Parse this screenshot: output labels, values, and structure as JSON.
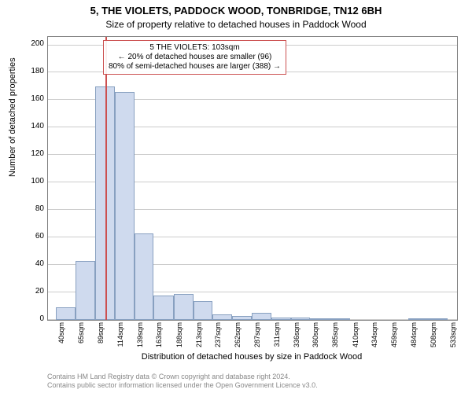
{
  "title_main": "5, THE VIOLETS, PADDOCK WOOD, TONBRIDGE, TN12 6BH",
  "title_sub": "Size of property relative to detached houses in Paddock Wood",
  "y_axis_label": "Number of detached properties",
  "x_axis_label": "Distribution of detached houses by size in Paddock Wood",
  "chart": {
    "type": "histogram",
    "ylim": [
      0,
      206
    ],
    "y_ticks": [
      0,
      20,
      40,
      60,
      80,
      100,
      120,
      140,
      160,
      180,
      200
    ],
    "x_tick_labels": [
      "40sqm",
      "65sqm",
      "89sqm",
      "114sqm",
      "139sqm",
      "163sqm",
      "188sqm",
      "213sqm",
      "237sqm",
      "262sqm",
      "287sqm",
      "311sqm",
      "336sqm",
      "360sqm",
      "385sqm",
      "410sqm",
      "434sqm",
      "459sqm",
      "484sqm",
      "508sqm",
      "533sqm"
    ],
    "x_tick_positions": [
      40,
      65,
      89,
      114,
      139,
      163,
      188,
      213,
      237,
      262,
      287,
      311,
      336,
      360,
      385,
      410,
      434,
      459,
      484,
      508,
      533
    ],
    "x_range": [
      30,
      545
    ],
    "bars": [
      {
        "x0": 40,
        "x1": 65,
        "value": 9
      },
      {
        "x0": 65,
        "x1": 89,
        "value": 43
      },
      {
        "x0": 89,
        "x1": 114,
        "value": 170
      },
      {
        "x0": 114,
        "x1": 139,
        "value": 166
      },
      {
        "x0": 139,
        "x1": 163,
        "value": 63
      },
      {
        "x0": 163,
        "x1": 188,
        "value": 18
      },
      {
        "x0": 188,
        "x1": 213,
        "value": 19
      },
      {
        "x0": 213,
        "x1": 237,
        "value": 14
      },
      {
        "x0": 237,
        "x1": 262,
        "value": 4
      },
      {
        "x0": 262,
        "x1": 287,
        "value": 3
      },
      {
        "x0": 287,
        "x1": 311,
        "value": 5
      },
      {
        "x0": 311,
        "x1": 336,
        "value": 2
      },
      {
        "x0": 336,
        "x1": 360,
        "value": 2
      },
      {
        "x0": 360,
        "x1": 385,
        "value": 1
      },
      {
        "x0": 385,
        "x1": 410,
        "value": 1
      },
      {
        "x0": 410,
        "x1": 434,
        "value": 0
      },
      {
        "x0": 434,
        "x1": 459,
        "value": 0
      },
      {
        "x0": 459,
        "x1": 484,
        "value": 0
      },
      {
        "x0": 484,
        "x1": 508,
        "value": 1
      },
      {
        "x0": 508,
        "x1": 533,
        "value": 1
      }
    ],
    "bar_fill": "#cfdaee",
    "bar_stroke": "#88a0c0",
    "grid_color": "#cccccc",
    "marker_value": 103,
    "marker_color": "#cc5050",
    "marker_height": 206
  },
  "annotation": {
    "line1": "5 THE VIOLETS: 103sqm",
    "line2": "← 20% of detached houses are smaller (96)",
    "line3": "80% of semi-detached houses are larger (388) →",
    "border_color": "#cc5050"
  },
  "attribution": {
    "line1": "Contains HM Land Registry data © Crown copyright and database right 2024.",
    "line2": "Contains public sector information licensed under the Open Government Licence v3.0."
  }
}
